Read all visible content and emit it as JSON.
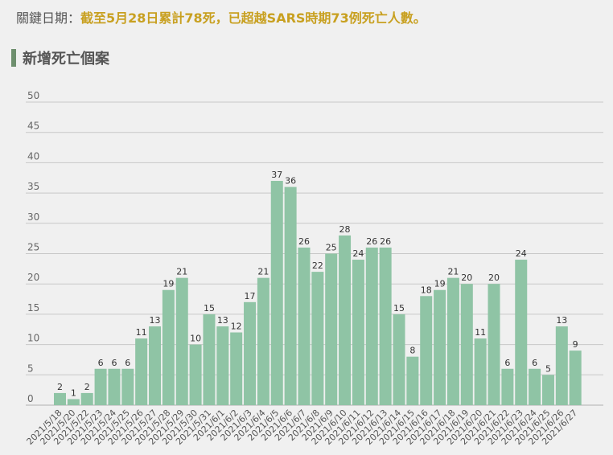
{
  "header": {
    "key_label": "關鍵日期：",
    "key_text": "截至5月28日累計78死，已超越SARS時期73例死亡人數。"
  },
  "section": {
    "title": "新增死亡個案"
  },
  "colors": {
    "bar": "#8fc4a5",
    "accent": "#c8a020",
    "section_bar": "#6e8f6e",
    "grid": "#c8c8c8"
  },
  "chart_data": {
    "type": "bar",
    "title": "",
    "xlabel": "",
    "ylabel": "",
    "ylim": [
      0,
      50
    ],
    "yticks": [
      0,
      5,
      10,
      15,
      20,
      25,
      30,
      35,
      40,
      45,
      50
    ],
    "grid": true,
    "categories": [
      "2021/5/18",
      "2021/5/20",
      "2021/5/22",
      "2021/5/23",
      "2021/5/24",
      "2021/5/25",
      "2021/5/26",
      "2021/5/27",
      "2021/5/28",
      "2021/5/29",
      "2021/5/30",
      "2021/5/31",
      "2021/6/1",
      "2021/6/2",
      "2021/6/3",
      "2021/6/4",
      "2021/6/5",
      "2021/6/6",
      "2021/6/7",
      "2021/6/8",
      "2021/6/9",
      "2021/6/10",
      "2021/6/11",
      "2021/6/12",
      "2021/6/13",
      "2021/6/14",
      "2021/6/15",
      "2021/6/16",
      "2021/6/17",
      "2021/6/18",
      "2021/6/19",
      "2021/6/20",
      "2021/6/21",
      "2021/6/22",
      "2021/6/23",
      "2021/6/24",
      "2021/6/25",
      "2021/6/26",
      "2021/6/27"
    ],
    "values": [
      2,
      1,
      2,
      6,
      6,
      6,
      11,
      13,
      19,
      21,
      10,
      15,
      13,
      12,
      17,
      21,
      37,
      36,
      26,
      22,
      25,
      28,
      24,
      26,
      26,
      15,
      8,
      18,
      19,
      21,
      20,
      11,
      20,
      6,
      24,
      6,
      5,
      13,
      9
    ]
  }
}
